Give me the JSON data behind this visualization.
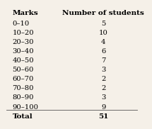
{
  "col1_header": "Marks",
  "col2_header": "Number of students",
  "rows": [
    [
      "0–10",
      "5"
    ],
    [
      "10–20",
      "10"
    ],
    [
      "20–30",
      "4"
    ],
    [
      "30–40",
      "6"
    ],
    [
      "40–50",
      "7"
    ],
    [
      "50–60",
      "3"
    ],
    [
      "60–70",
      "2"
    ],
    [
      "70–80",
      "2"
    ],
    [
      "80–90",
      "3"
    ],
    [
      "90–100",
      "9"
    ]
  ],
  "total_label": "Total",
  "total_value": "51",
  "bg_color": "#f5f0e8",
  "text_color": "#000000",
  "header_fontsize": 7.5,
  "row_fontsize": 7.2,
  "total_fontsize": 7.5
}
